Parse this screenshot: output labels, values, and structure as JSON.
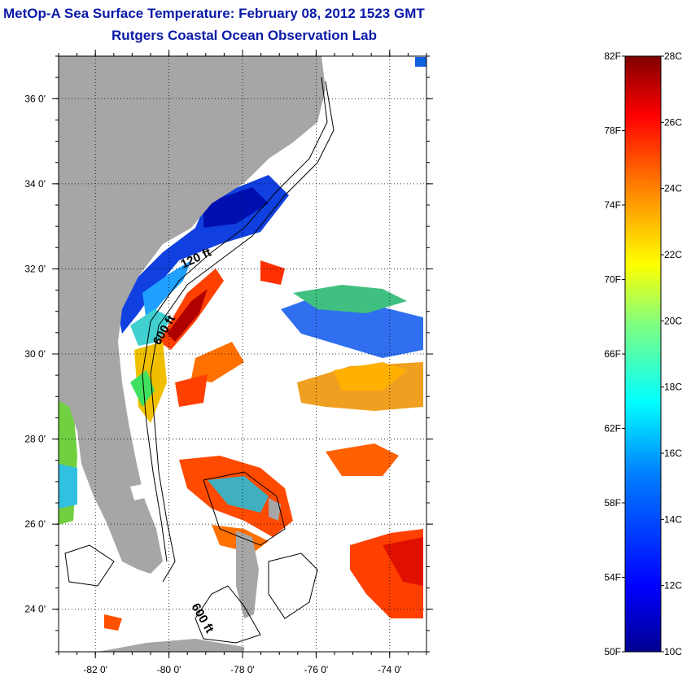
{
  "header": {
    "title": "MetOp-A Sea Surface Temperature:  February 08, 2012 1523 GMT",
    "subtitle": "Rutgers Coastal Ocean Observation Lab"
  },
  "map": {
    "lon_range": [
      -83,
      -73
    ],
    "lat_range": [
      23,
      37
    ],
    "lat_ticks": [
      {
        "value": 36,
        "label": "36 0'"
      },
      {
        "value": 34,
        "label": "34 0'"
      },
      {
        "value": 32,
        "label": "32 0'"
      },
      {
        "value": 30,
        "label": "30 0'"
      },
      {
        "value": 28,
        "label": "28 0'"
      },
      {
        "value": 26,
        "label": "26 0'"
      },
      {
        "value": 24,
        "label": "24 0'"
      }
    ],
    "lon_ticks": [
      {
        "value": -82,
        "label": "-82 0'"
      },
      {
        "value": -80,
        "label": "-80 0'"
      },
      {
        "value": -78,
        "label": "-78 0'"
      },
      {
        "value": -76,
        "label": "-76 0'"
      },
      {
        "value": -74,
        "label": "-74 0'"
      }
    ],
    "contour_labels": [
      "120 ft",
      "600 ft",
      "600 ft"
    ],
    "land_color": "#a6a6a6",
    "grid": true
  },
  "colorbar": {
    "range_c": [
      10,
      28
    ],
    "range_f": [
      50,
      82
    ],
    "celsius_labels": [
      "28C",
      "26C",
      "24C",
      "22C",
      "20C",
      "18C",
      "16C",
      "14C",
      "12C",
      "10C"
    ],
    "fahrenheit_labels": [
      "82F",
      "78F",
      "74F",
      "70F",
      "66F",
      "62F",
      "58F",
      "54F",
      "50F"
    ],
    "colors": [
      "#00008f",
      "#0000ff",
      "#0080ff",
      "#00ffff",
      "#80ff80",
      "#ffff00",
      "#ff8000",
      "#ff0000",
      "#800000"
    ]
  }
}
